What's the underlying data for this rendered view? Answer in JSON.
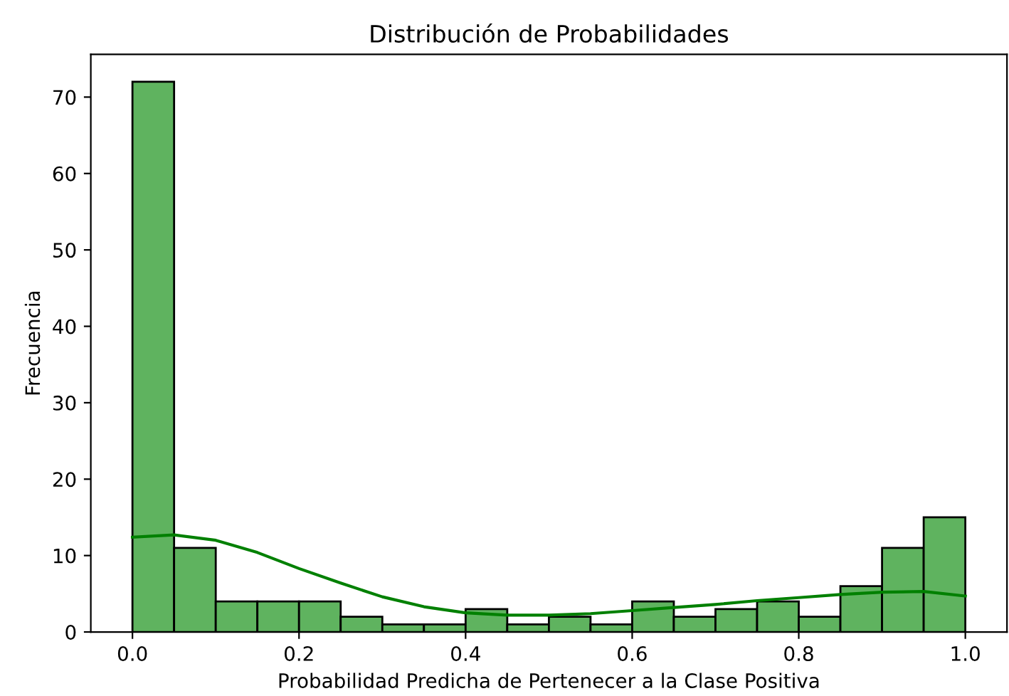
{
  "chart_data": {
    "type": "histogram",
    "title": "Distribución de Probabilidades",
    "xlabel": "Probabilidad Predicha de Pertenecer a la Clase Positiva",
    "ylabel": "Frecuencia",
    "series": [
      {
        "color": "#5fb35f",
        "bins": [
          0,
          0.05,
          0.1,
          0.15,
          0.2,
          0.25,
          0.3,
          0.35,
          0.4,
          0.45,
          0.5,
          0.55,
          0.6,
          0.65,
          0.7,
          0.75,
          0.8,
          0.85,
          0.9,
          0.95,
          1.0
        ],
        "values": [
          72,
          11,
          4,
          4,
          4,
          2,
          1,
          1,
          3,
          1,
          2,
          1,
          4,
          2,
          3,
          4,
          2,
          6,
          11,
          15
        ]
      },
      {
        "type": "line",
        "color": "#008000",
        "x": [
          0,
          0.05,
          0.1,
          0.15,
          0.2,
          0.25,
          0.3,
          0.35,
          0.4,
          0.45,
          0.5,
          0.55,
          0.6,
          0.65,
          0.7,
          0.75,
          0.8,
          0.85,
          0.9,
          0.95,
          1.0
        ],
        "values": [
          12.4,
          12.7,
          12,
          10.4,
          8.3,
          6.4,
          4.6,
          3.3,
          2.5,
          2.2,
          2.2,
          2.4,
          2.8,
          3.2,
          3.6,
          4.1,
          4.5,
          4.9,
          5.2,
          5.3,
          4.7
        ]
      }
    ],
    "xlim": [
      -0.05,
      1.05
    ],
    "ylim": [
      0,
      75.6
    ],
    "xticks": [
      {
        "value": 0,
        "label": "0.0"
      },
      {
        "value": 0.2,
        "label": "0.2"
      },
      {
        "value": 0.4,
        "label": "0.4"
      },
      {
        "value": 0.6,
        "label": "0.6"
      },
      {
        "value": 0.8,
        "label": "0.8"
      },
      {
        "value": 1.0,
        "label": "1.0"
      }
    ],
    "yticks": [
      0,
      10,
      20,
      30,
      40,
      50,
      60,
      70
    ],
    "grid": false
  }
}
